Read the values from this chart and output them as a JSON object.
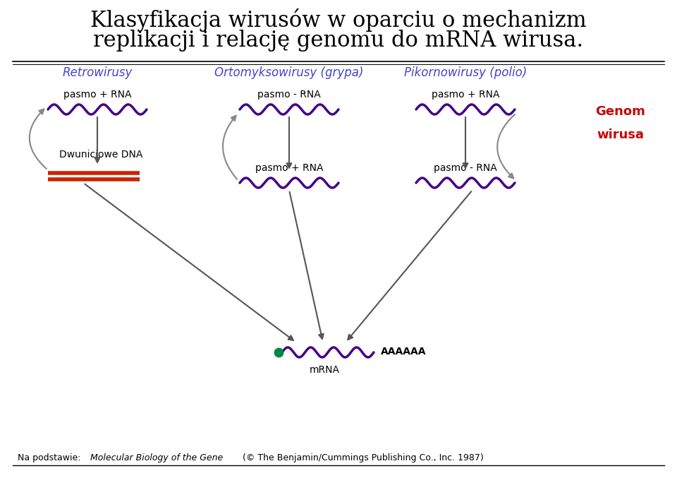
{
  "title_line1": "Klasyfikacja wirusów w oparciu o mechanizm",
  "title_line2": "replikacji i relację genomu do mRNA wirusa.",
  "title_fontsize": 22,
  "bg_color": "#ffffff",
  "retro_label": "Retrowirusy",
  "ortho_label": "Ortomyksowirusy (grypa)",
  "pikorno_label": "Pikornowirusy (polio)",
  "genom_label1": "Genom",
  "genom_label2": "wirusa",
  "label_color": "#4444cc",
  "genom_color": "#cc0000",
  "wave_color": "#440088",
  "dna_color": "#cc2200",
  "arrow_color": "#555555",
  "curved_arrow_color": "#888888",
  "mrna_dot_color": "#008844",
  "footer_normal": "Na podstawie: ",
  "footer_italic": "Molecular Biology of the Gene",
  "footer_end": " (© The Benjamin/Cummings Publishing Co., Inc. 1987)",
  "fig_w": 9.6,
  "fig_h": 6.77,
  "dpi": 100
}
